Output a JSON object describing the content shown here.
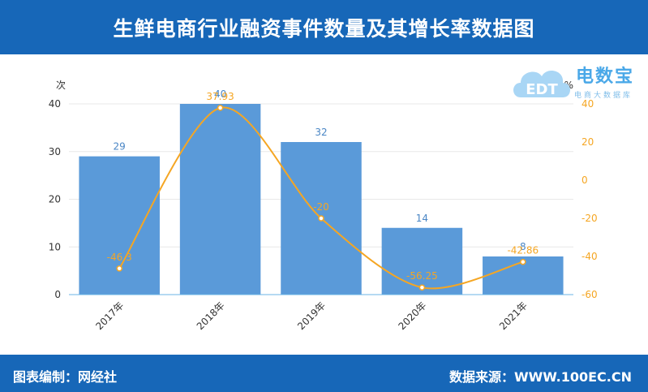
{
  "header": {
    "title": "生鲜电商行业融资事件数量及其增长率数据图"
  },
  "footer": {
    "left": "图表编制：网经社",
    "right": "数据来源：WWW.100EC.CN"
  },
  "logo": {
    "brand": "电数宝",
    "sub": "电商大数据库",
    "mark": "EDT"
  },
  "colors": {
    "header": "#1767b8",
    "bar": "#5a9ad9",
    "line": "#f5a623",
    "left_axis_text": "#333333",
    "right_axis_text": "#f5a623"
  },
  "chart_data": {
    "type": "bar+line",
    "categories": [
      "2017年",
      "2018年",
      "2019年",
      "2020年",
      "2021年"
    ],
    "left_unit": "次",
    "right_unit": "%",
    "left_ticks": [
      0,
      10,
      20,
      30,
      40
    ],
    "right_ticks": [
      -60,
      -40,
      -20,
      0,
      20,
      40
    ],
    "left_ylim": [
      0,
      40
    ],
    "right_ylim": [
      -60,
      40
    ],
    "grid": true,
    "series": [
      {
        "kind": "bar",
        "values": [
          29,
          40,
          32,
          14,
          8
        ],
        "labels": [
          "29",
          "40",
          "32",
          "14",
          "8"
        ]
      },
      {
        "kind": "line",
        "values": [
          -46.3,
          37.93,
          -20,
          -56.25,
          -42.86
        ],
        "labels": [
          "-46.3",
          "37.93",
          "-20",
          "-56.25",
          "-42.86"
        ]
      }
    ]
  }
}
